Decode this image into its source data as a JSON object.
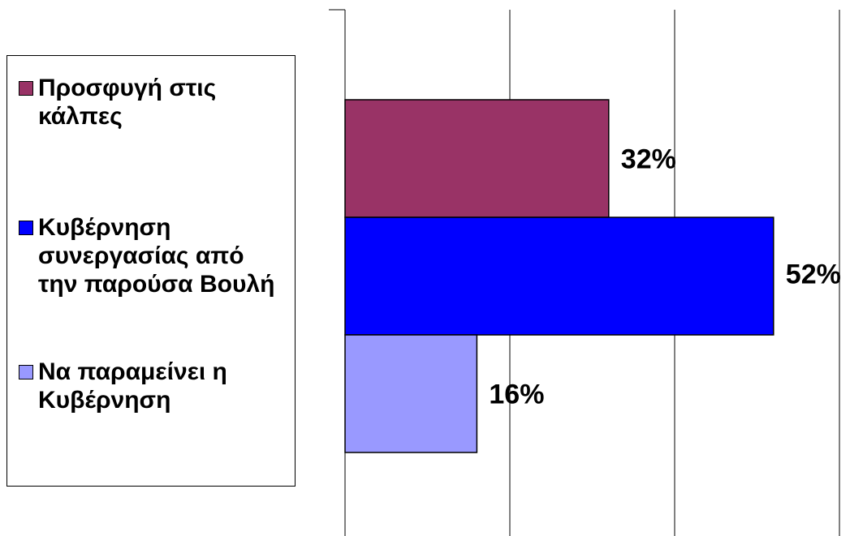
{
  "chart_data": {
    "type": "barh",
    "series": [
      {
        "name": "Προσφυγή στις κάλπες",
        "color": "#993366",
        "values": [
          32
        ],
        "value_labels": [
          "32%"
        ]
      },
      {
        "name": "Κυβέρνηση συνεργασίας από την παρούσα Βουλή",
        "color": "#0000ff",
        "values": [
          52
        ],
        "value_labels": [
          "52%"
        ]
      },
      {
        "name": "Να παραμείνει η Κυβέρνηση",
        "color": "#9999ff",
        "values": [
          16
        ],
        "value_labels": [
          "16%"
        ]
      }
    ],
    "xlim": [
      0,
      60
    ],
    "xticks": [
      0,
      20,
      40,
      60
    ],
    "grid": true,
    "legend": "left"
  }
}
